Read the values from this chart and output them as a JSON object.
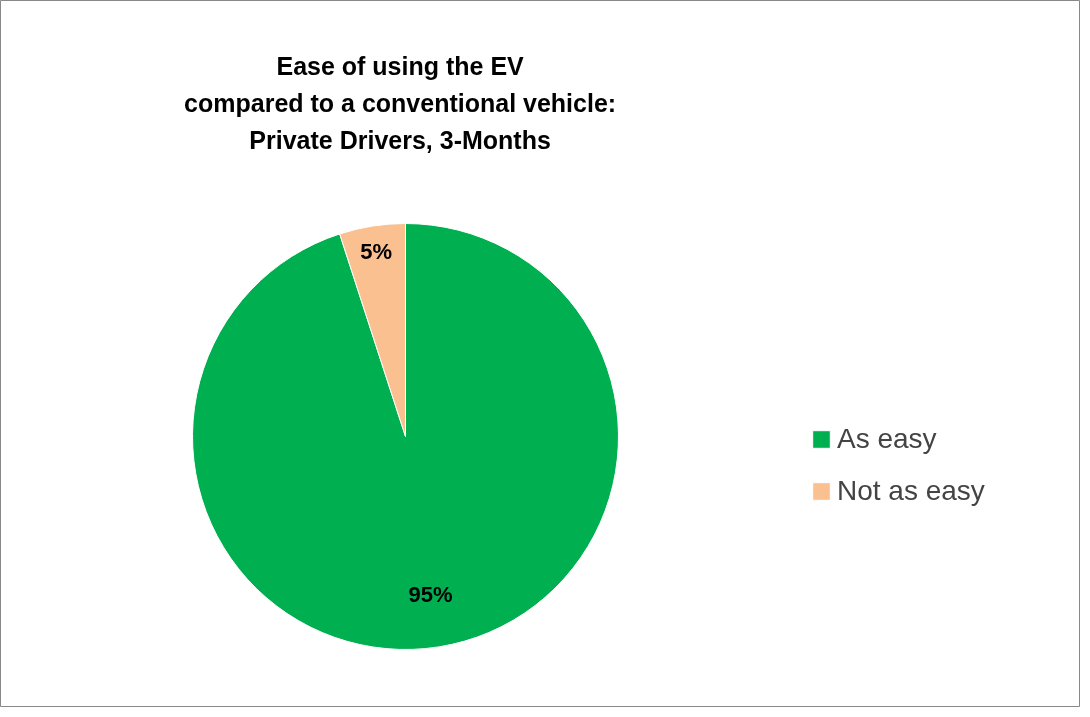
{
  "chart_data": {
    "type": "pie",
    "title": "Ease of using the EV\ncompared to a conventional vehicle:\nPrivate Drivers, 3-Months",
    "categories": [
      "As easy",
      "Not as easy"
    ],
    "values": [
      95,
      5
    ],
    "colors": [
      "#00b050",
      "#fac090"
    ],
    "value_labels": [
      "95%",
      "5%"
    ],
    "legend": "right"
  }
}
